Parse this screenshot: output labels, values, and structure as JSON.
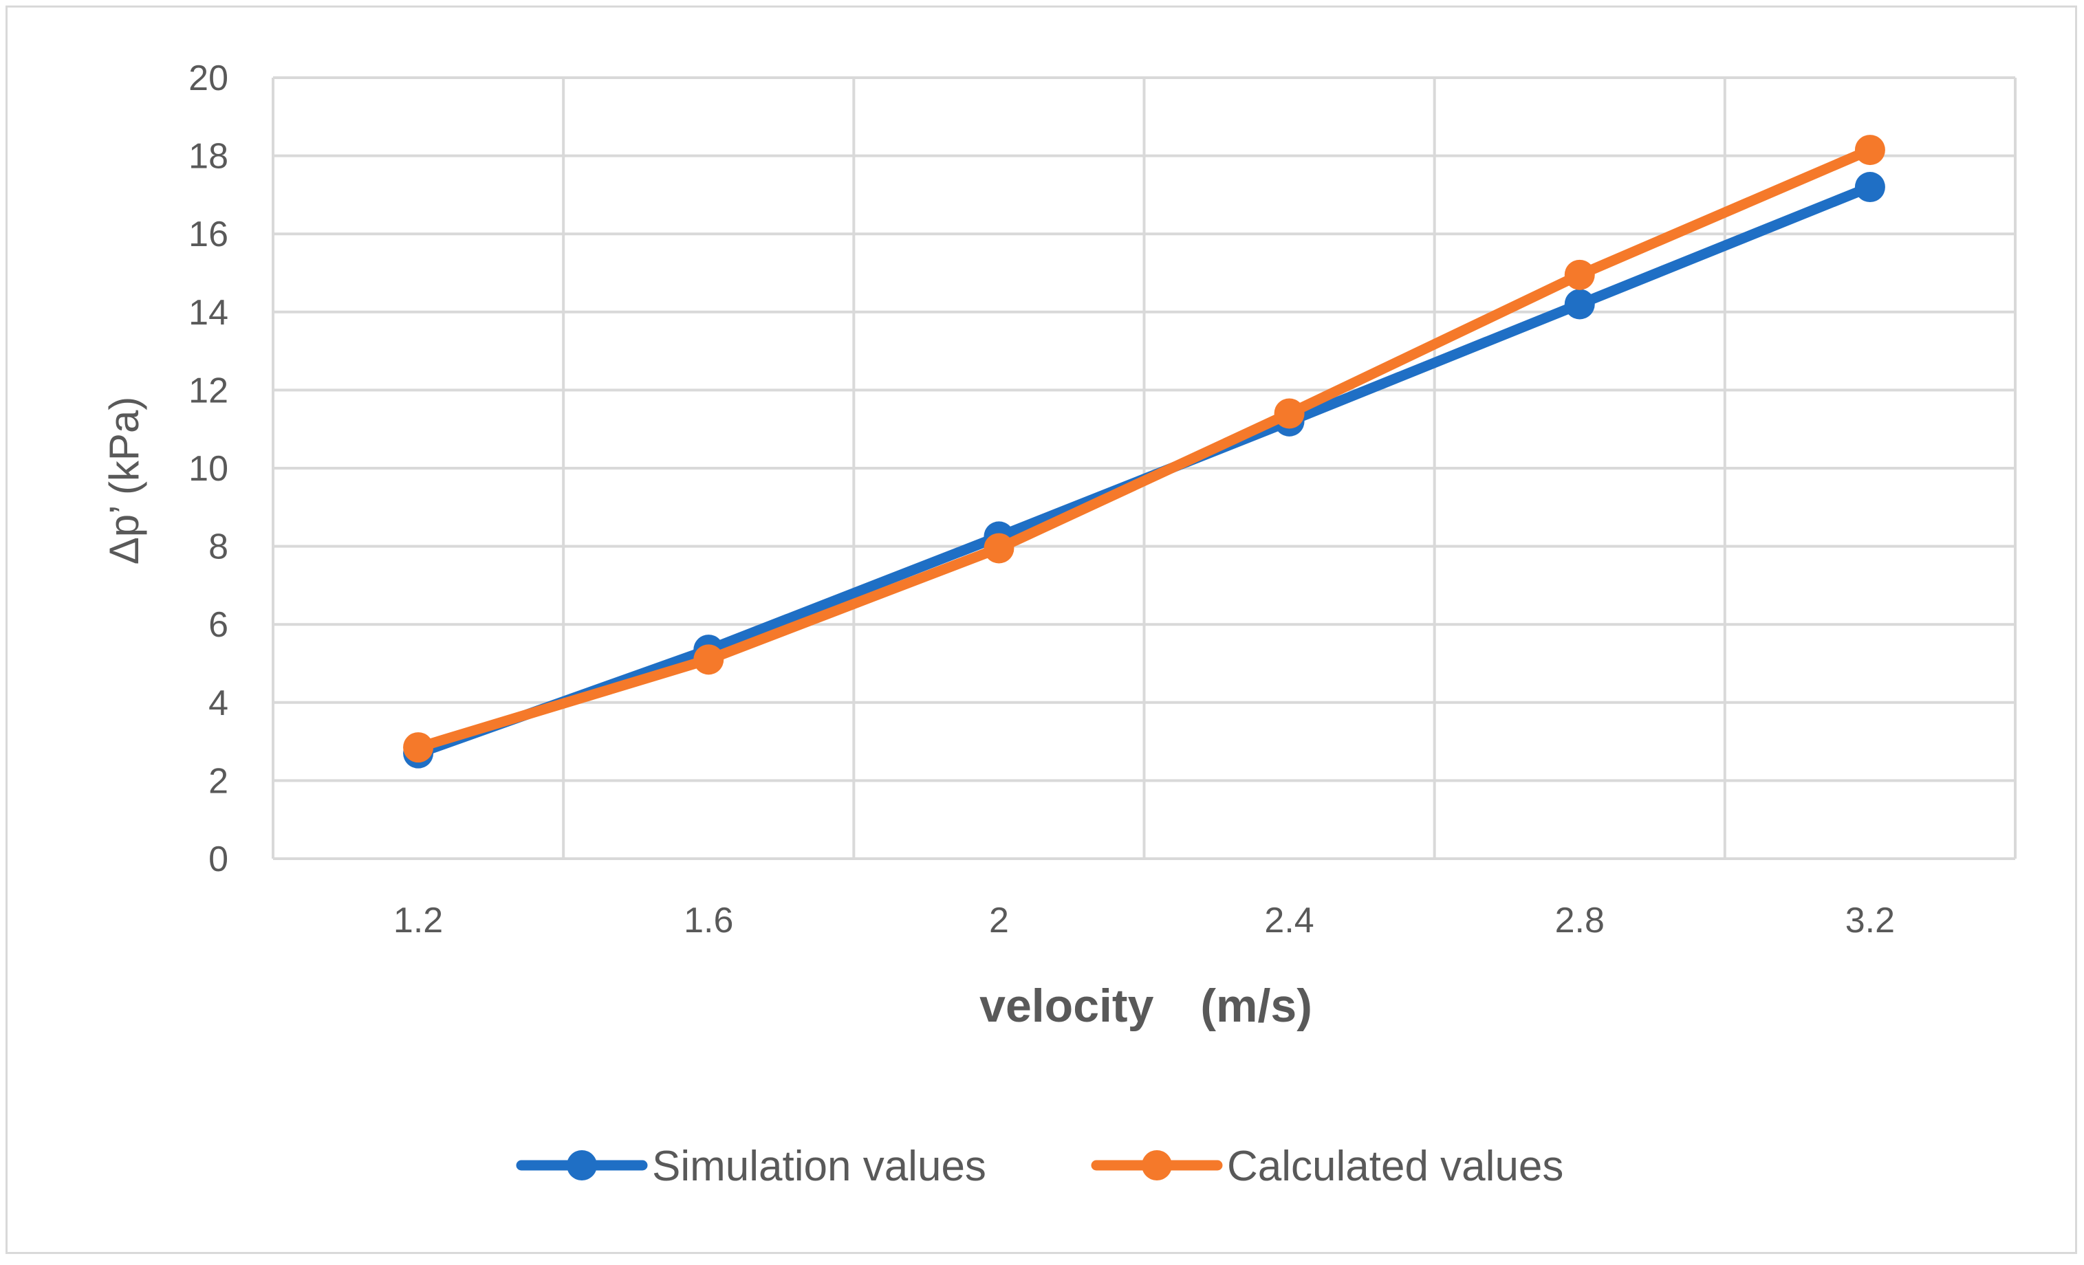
{
  "chart_data": {
    "type": "line",
    "title": "",
    "xlabel": "velocity　(m/s)",
    "ylabel": "Δp’ (kPa)",
    "categories": [
      "1.2",
      "1.6",
      "2",
      "2.4",
      "2.8",
      "3.2"
    ],
    "ylim": [
      0,
      20
    ],
    "yticks": [
      0,
      2,
      4,
      6,
      8,
      10,
      12,
      14,
      16,
      18,
      20
    ],
    "grid": true,
    "legend_position": "bottom",
    "series": [
      {
        "name": "Simulation values",
        "color": "#1f6fc5",
        "values": [
          2.7,
          5.35,
          8.25,
          11.2,
          14.2,
          17.2
        ]
      },
      {
        "name": "Calculated values",
        "color": "#f5792a",
        "values": [
          2.85,
          5.1,
          7.95,
          11.4,
          14.95,
          18.15
        ]
      }
    ]
  }
}
